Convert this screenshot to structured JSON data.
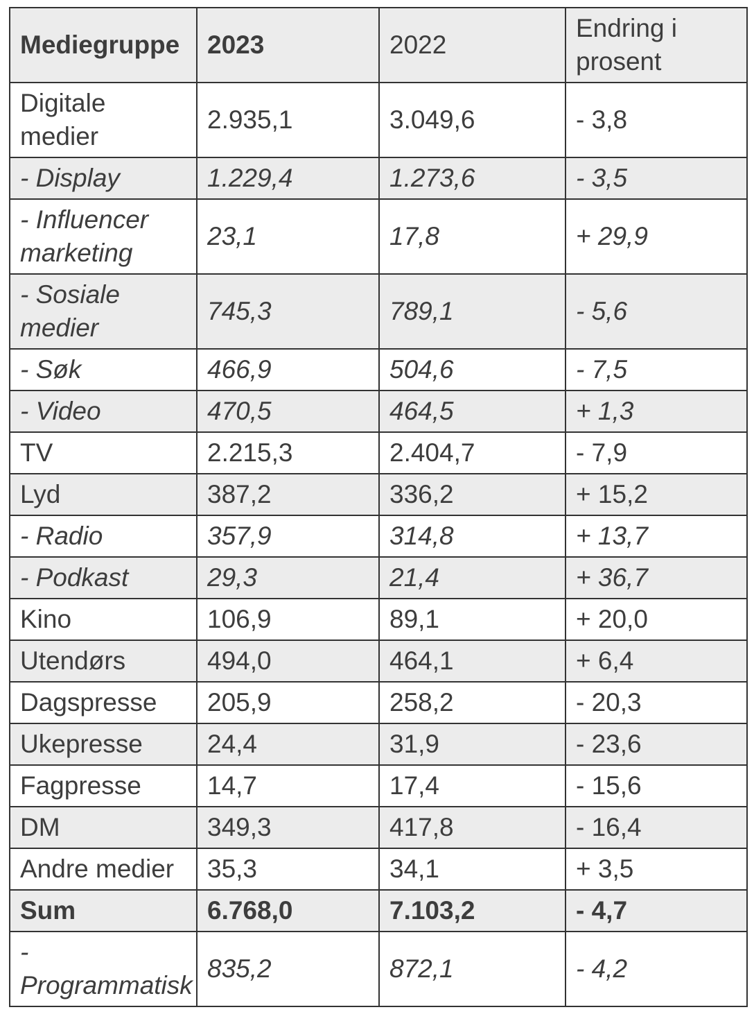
{
  "colors": {
    "stripe": "#ececec",
    "text": "#3d3d3d",
    "border": "#333333",
    "background": "#ffffff"
  },
  "chart_data": {
    "type": "table",
    "columns": [
      "Mediegruppe",
      "2023",
      "2022",
      "Endring i prosent"
    ],
    "header_bold_columns": [
      0,
      1
    ],
    "rows": [
      {
        "cells": [
          "Digitale medier",
          "2.935,1",
          "3.049,6",
          "- 3,8"
        ],
        "style": "normal"
      },
      {
        "cells": [
          "- Display",
          "1.229,4",
          "1.273,6",
          "- 3,5"
        ],
        "style": "italic"
      },
      {
        "cells": [
          "- Influencer marketing",
          "23,1",
          "17,8",
          "+ 29,9"
        ],
        "style": "italic"
      },
      {
        "cells": [
          "- Sosiale medier",
          "745,3",
          "789,1",
          "- 5,6"
        ],
        "style": "italic"
      },
      {
        "cells": [
          "- Søk",
          "466,9",
          "504,6",
          "- 7,5"
        ],
        "style": "italic"
      },
      {
        "cells": [
          "- Video",
          "470,5",
          "464,5",
          "+ 1,3"
        ],
        "style": "italic"
      },
      {
        "cells": [
          "TV",
          "2.215,3",
          "2.404,7",
          "- 7,9"
        ],
        "style": "normal"
      },
      {
        "cells": [
          "Lyd",
          "387,2",
          "336,2",
          "+ 15,2"
        ],
        "style": "normal"
      },
      {
        "cells": [
          "- Radio",
          "357,9",
          "314,8",
          "+ 13,7"
        ],
        "style": "italic"
      },
      {
        "cells": [
          "- Podkast",
          "29,3",
          "21,4",
          "+ 36,7"
        ],
        "style": "italic"
      },
      {
        "cells": [
          "Kino",
          "106,9",
          "89,1",
          "+ 20,0"
        ],
        "style": "normal"
      },
      {
        "cells": [
          "Utendørs",
          "494,0",
          "464,1",
          "+ 6,4"
        ],
        "style": "normal"
      },
      {
        "cells": [
          "Dagspresse",
          "205,9",
          "258,2",
          "- 20,3"
        ],
        "style": "normal"
      },
      {
        "cells": [
          "Ukepresse",
          "24,4",
          "31,9",
          "- 23,6"
        ],
        "style": "normal"
      },
      {
        "cells": [
          "Fagpresse",
          "14,7",
          "17,4",
          "- 15,6"
        ],
        "style": "normal"
      },
      {
        "cells": [
          "DM",
          "349,3",
          "417,8",
          "- 16,4"
        ],
        "style": "normal"
      },
      {
        "cells": [
          "Andre medier",
          "35,3",
          "34,1",
          "+ 3,5"
        ],
        "style": "normal"
      },
      {
        "cells": [
          "Sum",
          "6.768,0",
          "7.103,2",
          "- 4,7"
        ],
        "style": "bold"
      },
      {
        "cells": [
          "- Programmatisk",
          "835,2",
          "872,1",
          "- 4,2"
        ],
        "style": "italic"
      }
    ]
  }
}
